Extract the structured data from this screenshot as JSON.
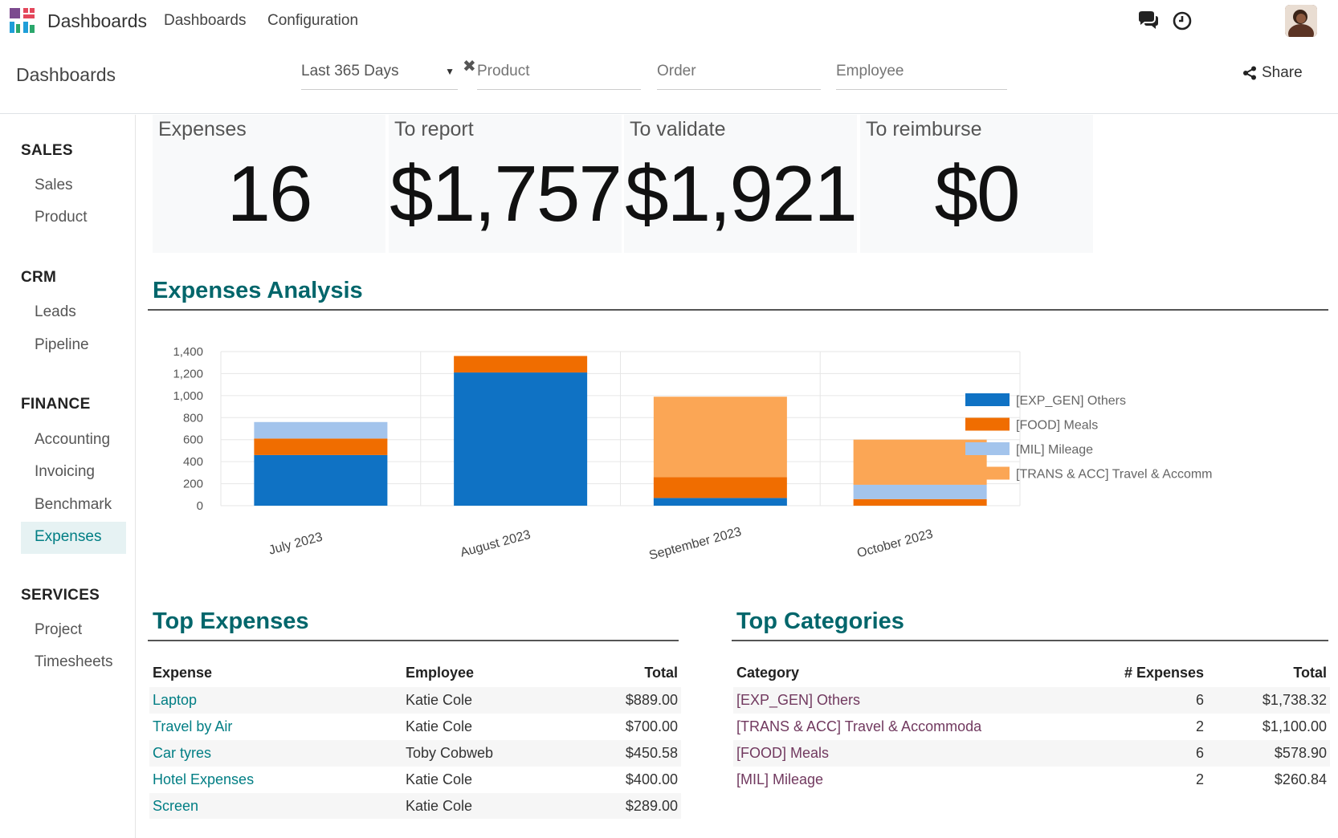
{
  "navbar": {
    "app_name": "Dashboards",
    "menu": [
      "Dashboards",
      "Configuration"
    ],
    "icons": [
      "chat-icon",
      "clock-icon"
    ]
  },
  "control": {
    "breadcrumb": "Dashboards",
    "date_filter": "Last 365 Days",
    "product_placeholder": "Product",
    "order_placeholder": "Order",
    "employee_placeholder": "Employee",
    "share_label": "Share"
  },
  "sidebar": {
    "sections": [
      {
        "title": "SALES",
        "items": [
          "Sales",
          "Product"
        ]
      },
      {
        "title": "CRM",
        "items": [
          "Leads",
          "Pipeline"
        ]
      },
      {
        "title": "FINANCE",
        "items": [
          "Accounting",
          "Invoicing",
          "Benchmark",
          "Expenses"
        ]
      },
      {
        "title": "SERVICES",
        "items": [
          "Project",
          "Timesheets"
        ]
      }
    ],
    "active_item": "Expenses"
  },
  "kpis": [
    {
      "title": "Expenses",
      "value": "16"
    },
    {
      "title": "To report",
      "value": "$1,757"
    },
    {
      "title": "To validate",
      "value": "$1,921"
    },
    {
      "title": "To reimburse",
      "value": "$0"
    }
  ],
  "analysis": {
    "title": "Expenses Analysis"
  },
  "chart_data": {
    "type": "bar",
    "stacked": true,
    "categories": [
      "July 2023",
      "August 2023",
      "September 2023",
      "October 2023"
    ],
    "series": [
      {
        "name": "[EXP_GEN] Others",
        "color": "#0f72c4",
        "values": [
          460,
          1210,
          70,
          0
        ]
      },
      {
        "name": "[FOOD] Meals",
        "color": "#f06d00",
        "values": [
          150,
          150,
          190,
          60
        ]
      },
      {
        "name": "[MIL] Mileage",
        "color": "#a3c4ec",
        "values": [
          150,
          0,
          0,
          130
        ]
      },
      {
        "name": "[TRANS & ACC] Travel & Accomm",
        "color": "#fba655",
        "values": [
          0,
          0,
          730,
          410
        ]
      }
    ],
    "ylim": [
      0,
      1400
    ],
    "yticks": [
      "0",
      "200",
      "400",
      "600",
      "800",
      "1,000",
      "1,200",
      "1,400"
    ],
    "grid": true,
    "legend": "right"
  },
  "top_expenses": {
    "title": "Top Expenses",
    "columns": [
      "Expense",
      "Employee",
      "Total"
    ],
    "rows": [
      [
        "Laptop",
        "Katie Cole",
        "$889.00"
      ],
      [
        "Travel by Air",
        "Katie Cole",
        "$700.00"
      ],
      [
        "Car tyres",
        "Toby Cobweb",
        "$450.58"
      ],
      [
        "Hotel Expenses",
        "Katie Cole",
        "$400.00"
      ],
      [
        "Screen",
        "Katie Cole",
        "$289.00"
      ]
    ]
  },
  "top_categories": {
    "title": "Top Categories",
    "columns": [
      "Category",
      "# Expenses",
      "Total"
    ],
    "rows": [
      [
        "[EXP_GEN] Others",
        "6",
        "$1,738.32"
      ],
      [
        "[TRANS & ACC] Travel & Accommoda",
        "2",
        "$1,100.00"
      ],
      [
        "[FOOD] Meals",
        "6",
        "$578.90"
      ],
      [
        "[MIL] Mileage",
        "2",
        "$260.84"
      ]
    ]
  }
}
